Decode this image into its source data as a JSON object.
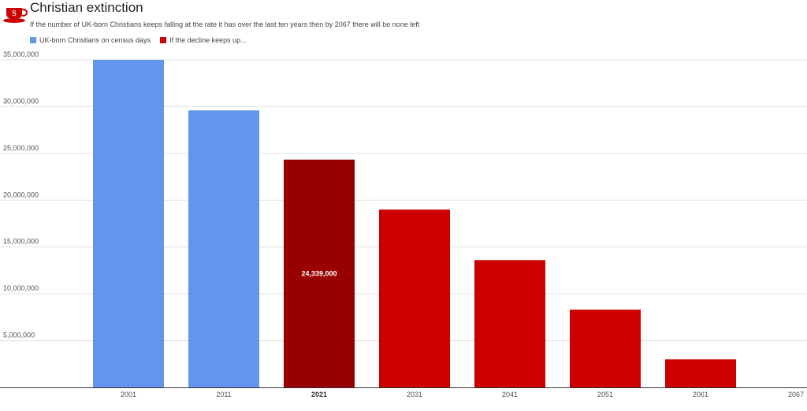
{
  "header": {
    "title": "Christian extinction",
    "subtitle": "If the number of UK-born Christians keeps falling at the rate it has over the last ten years then by 2067 there will be none left",
    "logo_icon": "red-teacup-logo-icon"
  },
  "colors": {
    "series_census": "#6495ed",
    "series_projection": "#cc0000",
    "highlight": "#990000",
    "grid": "#e3e3e3",
    "axis": "#333333"
  },
  "chart_data": {
    "type": "bar",
    "categories": [
      "2001",
      "2011",
      "2021",
      "2031",
      "2041",
      "2051",
      "2061",
      "2067"
    ],
    "series": [
      {
        "name": "UK-born Christians on census days",
        "values": [
          35000000,
          29600000,
          null,
          null,
          null,
          null,
          null,
          null
        ]
      },
      {
        "name": "If the decline keeps up...",
        "values": [
          null,
          null,
          24339000,
          19000000,
          13600000,
          8300000,
          3000000,
          null
        ]
      }
    ],
    "highlighted_category": "2021",
    "data_labels": [
      {
        "category": "2021",
        "text": "24,339,000"
      }
    ],
    "y_ticks": [
      0,
      5000000,
      10000000,
      15000000,
      20000000,
      25000000,
      30000000,
      35000000
    ],
    "y_tick_labels": [
      "",
      "5,000,000",
      "10,000,000",
      "15,000,000",
      "20,000,000",
      "25,000,000",
      "30,000,000",
      "35,000,000"
    ],
    "ylim": [
      0,
      35000000
    ],
    "grid": true,
    "legend_position": "top-left"
  }
}
